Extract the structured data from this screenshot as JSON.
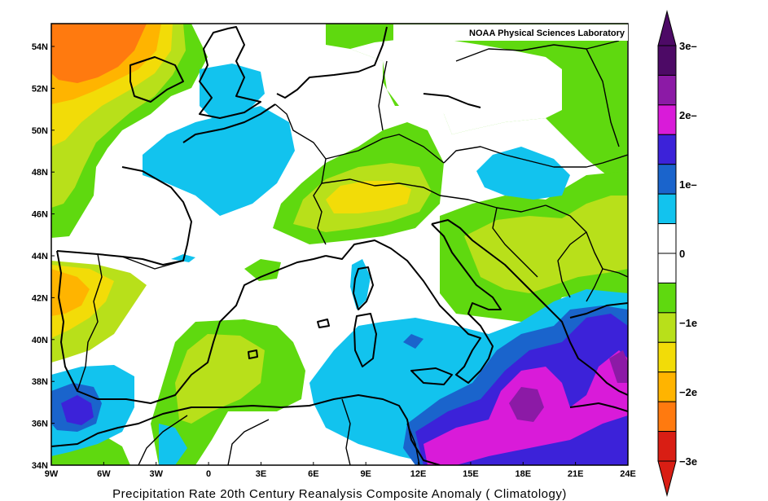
{
  "credit": "NOAA Physical Sciences Laboratory",
  "title": "Precipitation Rate 20th Century Reanalysis Composite Anomaly ( Climatology)",
  "lat_labels": [
    "54N",
    "52N",
    "50N",
    "48N",
    "46N",
    "44N",
    "42N",
    "40N",
    "38N",
    "36N",
    "34N"
  ],
  "lon_labels": [
    "9W",
    "6W",
    "3W",
    "0",
    "3E",
    "6E",
    "9E",
    "12E",
    "15E",
    "18E",
    "21E",
    "24E"
  ],
  "colorbar": {
    "labels": [
      "3e–",
      "2e–",
      "1e–",
      "0",
      "−1e",
      "−2e",
      "−3e"
    ],
    "colors": [
      "#4d0a66",
      "#8c1aa6",
      "#d91bd9",
      "#3c22d9",
      "#1a64cc",
      "#12c3ee",
      "#ffffff",
      "#ffffff",
      "#5fd90f",
      "#b8e01a",
      "#f2dc08",
      "#ffb400",
      "#ff7a0f",
      "#d91e14"
    ]
  },
  "anomaly_colors": {
    "wet3": "#8c1aa6",
    "wet2": "#d91bd9",
    "wet1b": "#3c22d9",
    "wet1a": "#1a64cc",
    "wet0": "#12c3ee",
    "neutral": "#ffffff",
    "dry0": "#5fd90f",
    "dry1": "#b8e01a",
    "dry2": "#f2dc08",
    "dry3": "#ffb400",
    "dry4": "#ff7a0f"
  }
}
